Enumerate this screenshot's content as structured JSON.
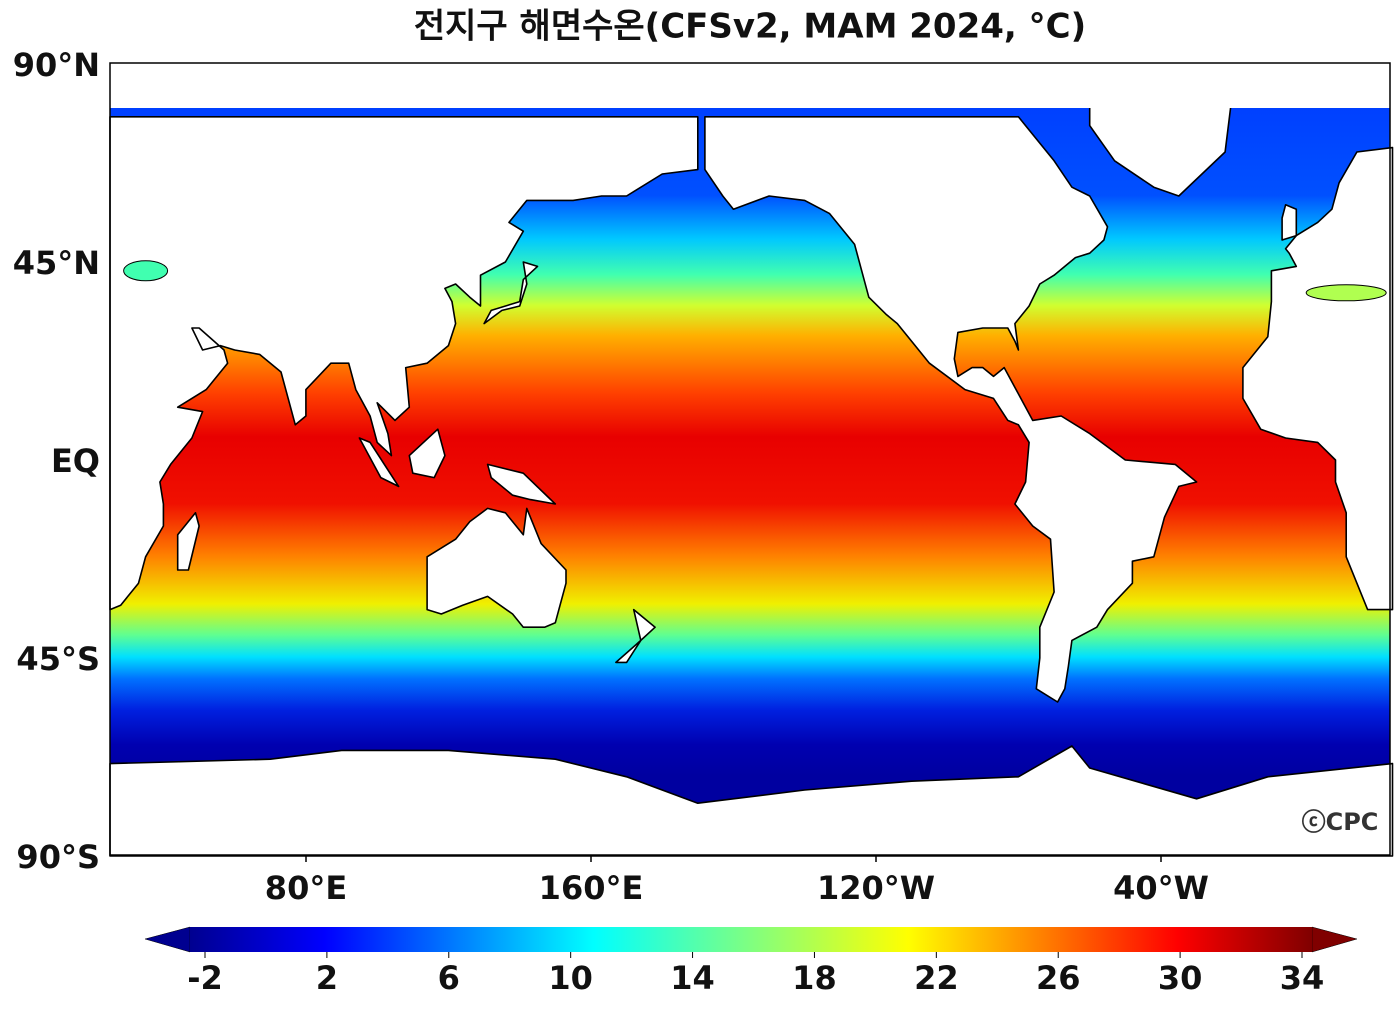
{
  "title": "전지구 해면수온(CFSv2, MAM 2024, °C)",
  "lat_labels": [
    "90°N",
    "45°N",
    "EQ",
    "45°S",
    "90°S"
  ],
  "lon_labels": [
    "80°E",
    "160°E",
    "120°W",
    "40°W"
  ],
  "colorbar": {
    "ticks": [
      -2,
      2,
      6,
      10,
      14,
      18,
      22,
      26,
      30,
      34
    ]
  },
  "credit": "ⓒCPC"
}
